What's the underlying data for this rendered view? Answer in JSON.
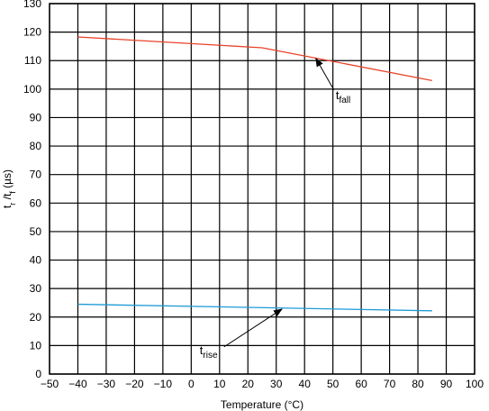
{
  "chart_data": {
    "type": "line",
    "title": "",
    "xlabel": "Temperature (°C)",
    "ylabel_parts": [
      "t",
      "r",
      " /t",
      "f",
      " (µs)"
    ],
    "xlim": [
      -50,
      100
    ],
    "ylim": [
      0,
      130
    ],
    "xticks": [
      -50,
      -40,
      -30,
      -20,
      -10,
      0,
      10,
      20,
      30,
      40,
      50,
      60,
      70,
      80,
      90,
      100
    ],
    "yticks": [
      0,
      10,
      20,
      30,
      40,
      50,
      60,
      70,
      80,
      90,
      100,
      110,
      120,
      130
    ],
    "x_tick_labels": [
      "−50",
      "−40",
      "−30",
      "−20",
      "−10",
      "0",
      "10",
      "20",
      "30",
      "40",
      "50",
      "60",
      "70",
      "80",
      "90",
      "100"
    ],
    "y_tick_labels": [
      "0",
      "10",
      "20",
      "30",
      "40",
      "50",
      "60",
      "70",
      "80",
      "90",
      "100",
      "110",
      "120",
      "130"
    ],
    "grid": true,
    "series": [
      {
        "key": "fall",
        "color": "#e8432a",
        "points": [
          [
            -40,
            118.3
          ],
          [
            25,
            114.5
          ],
          [
            85,
            103.0
          ]
        ]
      },
      {
        "key": "rise",
        "color": "#1f9bd7",
        "points": [
          [
            -40,
            24.5
          ],
          [
            85,
            22.2
          ]
        ]
      }
    ],
    "annotations": [
      {
        "key": "fall",
        "base": "t",
        "sub": "fall",
        "label_at": [
          51,
          96.5
        ],
        "arrow_to": [
          44,
          110.8
        ]
      },
      {
        "key": "rise",
        "base": "t",
        "sub": "rise",
        "label_at": [
          3,
          7.0
        ],
        "arrow_to": [
          32,
          22.8
        ]
      }
    ]
  }
}
